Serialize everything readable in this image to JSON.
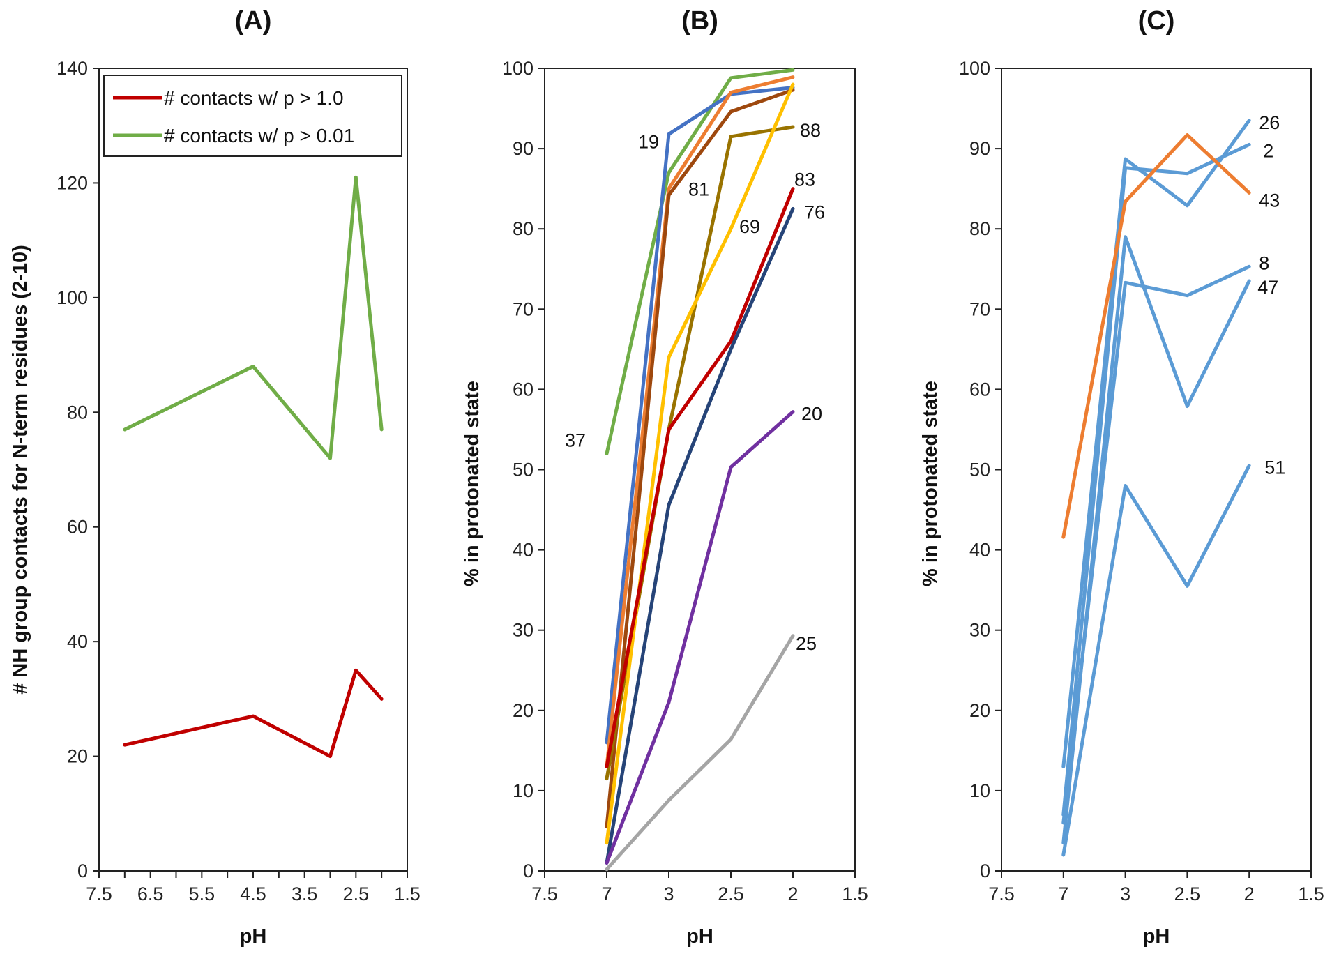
{
  "chart_data": [
    {
      "type": "line",
      "title": "(A)",
      "xlabel": "pH",
      "ylabel": "# NH group contacts for N-term residues (2-10)",
      "x_axis": "numeric",
      "xlim": [
        7.5,
        1.5
      ],
      "xticks": [
        7.5,
        7,
        6.5,
        6,
        5.5,
        5,
        4.5,
        4,
        3.5,
        3,
        2.5,
        2,
        1.5
      ],
      "xtick_labels": [
        "7.5",
        "",
        "6.5",
        "",
        "5.5",
        "",
        "4.5",
        "",
        "3.5",
        "",
        "2.5",
        "",
        "1.5"
      ],
      "ylim": [
        0,
        140
      ],
      "yticks": [
        0,
        20,
        40,
        60,
        80,
        100,
        120,
        140
      ],
      "legend_position": "top-left",
      "series": [
        {
          "name": "# contacts w/ p > 1.0",
          "color": "#C00000",
          "x": [
            7,
            4.5,
            3,
            2.5,
            2
          ],
          "values": [
            22,
            27,
            20,
            35,
            30
          ]
        },
        {
          "name": "# contacts w/ p > 0.01",
          "color": "#70AD47",
          "x": [
            7,
            4.5,
            3,
            2.5,
            2
          ],
          "values": [
            77,
            88,
            72,
            121,
            77
          ]
        }
      ]
    },
    {
      "type": "line",
      "title": "(B)",
      "xlabel": "pH",
      "ylabel": "% in protonated state",
      "x_axis": "category",
      "categories": [
        "7.5",
        "7",
        "3",
        "2.5",
        "2",
        "1.5"
      ],
      "ylim": [
        0,
        100
      ],
      "yticks": [
        0,
        10,
        20,
        30,
        40,
        50,
        60,
        70,
        80,
        90,
        100
      ],
      "series": [
        {
          "name": "37",
          "color": "#70AD47",
          "x": [
            "7",
            "3",
            "2.5",
            "2"
          ],
          "values": [
            52,
            87,
            98.8,
            99.8
          ],
          "label_at": "start"
        },
        {
          "name": "19",
          "color": "#4472C4",
          "x": [
            "7",
            "3",
            "2.5",
            "2"
          ],
          "values": [
            16,
            91.8,
            96.8,
            97.6
          ],
          "label_at": "3"
        },
        {
          "name": "81",
          "color": "#ED7D31",
          "x": [
            "7",
            "3",
            "2.5",
            "2"
          ],
          "values": [
            13,
            85,
            97,
            98.9
          ],
          "label_at": "3"
        },
        {
          "name": "",
          "color": "#9E480E",
          "x": [
            "7",
            "3",
            "2.5",
            "2"
          ],
          "values": [
            5.5,
            84.2,
            94.6,
            97.3
          ]
        },
        {
          "name": "88",
          "color": "#997300",
          "x": [
            "7",
            "3",
            "2.5",
            "2"
          ],
          "values": [
            11.5,
            55,
            91.5,
            92.7
          ],
          "label_at": "end"
        },
        {
          "name": "69",
          "color": "#FFC000",
          "x": [
            "7",
            "3",
            "2.5",
            "2"
          ],
          "values": [
            3.5,
            64,
            80,
            98
          ],
          "label_at": "2.5"
        },
        {
          "name": "83",
          "color": "#C00000",
          "x": [
            "7",
            "3",
            "2.5",
            "2"
          ],
          "values": [
            13,
            55,
            66,
            85
          ],
          "label_at": "end"
        },
        {
          "name": "76",
          "color": "#264478",
          "x": [
            "7",
            "3",
            "2.5",
            "2"
          ],
          "values": [
            1,
            45.6,
            65,
            82.5
          ],
          "label_at": "end"
        },
        {
          "name": "20",
          "color": "#7030A0",
          "x": [
            "7",
            "3",
            "2.5",
            "2"
          ],
          "values": [
            1,
            21,
            50.3,
            57.2
          ],
          "label_at": "end"
        },
        {
          "name": "25",
          "color": "#A5A5A5",
          "x": [
            "7",
            "3",
            "2.5",
            "2"
          ],
          "values": [
            0.2,
            8.8,
            16.4,
            29.3
          ],
          "label_at": "end"
        }
      ]
    },
    {
      "type": "line",
      "title": "(C)",
      "xlabel": "pH",
      "ylabel": "% in protonated state",
      "x_axis": "category",
      "categories": [
        "7.5",
        "7",
        "3",
        "2.5",
        "2",
        "1.5"
      ],
      "ylim": [
        0,
        100
      ],
      "yticks": [
        0,
        10,
        20,
        30,
        40,
        50,
        60,
        70,
        80,
        90,
        100
      ],
      "series": [
        {
          "name": "26",
          "color": "#5B9BD5",
          "x": [
            "7",
            "3",
            "2.5",
            "2"
          ],
          "values": [
            13,
            88.7,
            82.9,
            93.5
          ],
          "label_at": "end"
        },
        {
          "name": "2",
          "color": "#5B9BD5",
          "x": [
            "7",
            "3",
            "2.5",
            "2"
          ],
          "values": [
            7,
            87.6,
            86.9,
            90.5
          ],
          "label_at": "end"
        },
        {
          "name": "43",
          "color": "#ED7D31",
          "x": [
            "7",
            "3",
            "2.5",
            "2"
          ],
          "values": [
            41.6,
            83.4,
            91.7,
            84.5
          ],
          "label_at": "end"
        },
        {
          "name": "8",
          "color": "#5B9BD5",
          "x": [
            "7",
            "3",
            "2.5",
            "2"
          ],
          "values": [
            6,
            73.3,
            71.7,
            75.3
          ],
          "label_at": "end"
        },
        {
          "name": "47",
          "color": "#5B9BD5",
          "x": [
            "7",
            "3",
            "2.5",
            "2"
          ],
          "values": [
            3.5,
            79,
            57.9,
            73.5
          ],
          "label_at": "end"
        },
        {
          "name": "51",
          "color": "#5B9BD5",
          "x": [
            "7",
            "3",
            "2.5",
            "2"
          ],
          "values": [
            2,
            48,
            35.5,
            50.5
          ],
          "label_at": "end"
        }
      ]
    }
  ]
}
